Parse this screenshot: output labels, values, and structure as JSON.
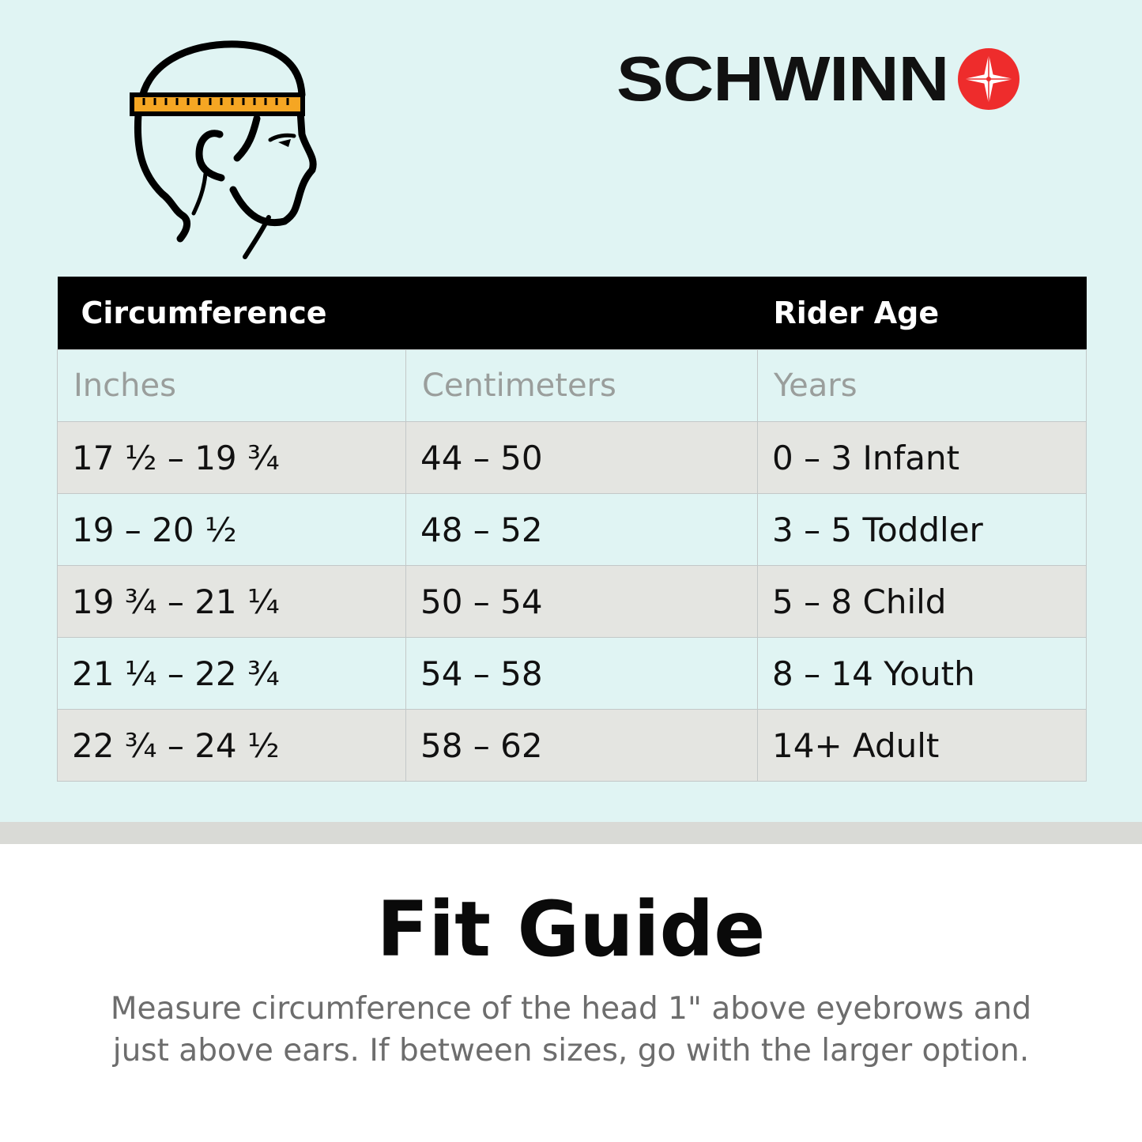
{
  "brand": {
    "name": "SCHWINN",
    "logo_color": "#ee2c2c"
  },
  "illustration": {
    "icon": "head-measuring-tape-icon",
    "tape_color": "#f5a623"
  },
  "table": {
    "header": {
      "circumference": "Circumference",
      "rider_age": "Rider Age"
    },
    "subheader": [
      "Inches",
      "Centimeters",
      "Years"
    ],
    "rows": [
      [
        "17 ½  –  19 ¾",
        "44  –  50",
        "0  –  3  Infant"
      ],
      [
        "19  –  20 ½",
        "48  –  52",
        "3  –  5 Toddler"
      ],
      [
        "19 ¾  –  21 ¼",
        "50  –  54",
        "5  –  8  Child"
      ],
      [
        "21 ¼  –  22 ¾",
        "54  –  58",
        "8  –  14  Youth"
      ],
      [
        "22 ¾  –  24 ½",
        "58  –  62",
        "14+  Adult"
      ]
    ]
  },
  "footer": {
    "title": "Fit Guide",
    "description_line1": "Measure circumference of the head 1\" above eyebrows and",
    "description_line2": "just above ears. If between sizes, go with the larger option."
  }
}
